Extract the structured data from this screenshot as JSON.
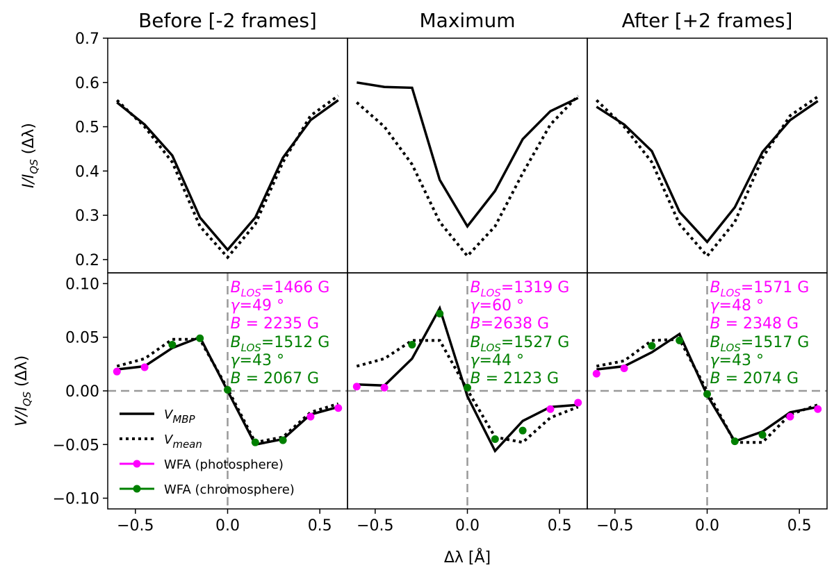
{
  "chart_data": {
    "type": "line",
    "panel_titles": [
      "Before [-2 frames]",
      "Maximum",
      "After [+2 frames]"
    ],
    "xlabel": "Δλ [Å]",
    "ylabel_top": "I/I_QS (Δλ)",
    "ylabel_bottom": "V/I_QS (Δλ)",
    "xlim": [
      -0.65,
      0.65
    ],
    "ylim_top": [
      0.17,
      0.7
    ],
    "ylim_bottom": [
      -0.11,
      0.11
    ],
    "xticks": [
      -0.5,
      0.0,
      0.5
    ],
    "xtick_labels": [
      "−0.5",
      "0.0",
      "0.5"
    ],
    "yticks_top": [
      0.2,
      0.3,
      0.4,
      0.5,
      0.6,
      0.7
    ],
    "ytick_labels_top": [
      "0.2",
      "0.3",
      "0.4",
      "0.5",
      "0.6",
      "0.7"
    ],
    "yticks_bottom": [
      -0.1,
      -0.05,
      0.0,
      0.05,
      0.1
    ],
    "ytick_labels_bottom": [
      "−0.10",
      "−0.05",
      "0.00",
      "0.05",
      "0.10"
    ],
    "x": [
      -0.6,
      -0.45,
      -0.3,
      -0.15,
      0.0,
      0.15,
      0.3,
      0.45,
      0.6
    ],
    "colors": {
      "photosphere": "#ff00ff",
      "chromosphere": "#008000",
      "reference": "#999999",
      "line": "#000000"
    },
    "legend": [
      {
        "key": "mbp",
        "label": "V_MBP"
      },
      {
        "key": "mean",
        "label": "V_mean"
      },
      {
        "key": "photo",
        "label": "WFA (photosphere)"
      },
      {
        "key": "chromo",
        "label": "WFA (chromosphere)"
      }
    ],
    "panels": [
      {
        "I_mbp": [
          0.555,
          0.505,
          0.435,
          0.295,
          0.222,
          0.295,
          0.43,
          0.515,
          0.56
        ],
        "I_mean": [
          0.56,
          0.5,
          0.42,
          0.275,
          0.205,
          0.28,
          0.42,
          0.525,
          0.57
        ],
        "V_mbp": [
          0.02,
          0.023,
          0.04,
          0.05,
          0.0,
          -0.05,
          -0.045,
          -0.022,
          -0.015
        ],
        "V_mean": [
          0.023,
          0.03,
          0.048,
          0.048,
          0.002,
          -0.048,
          -0.043,
          -0.02,
          -0.012
        ],
        "photo_x": [
          -0.6,
          -0.45,
          0.45,
          0.6
        ],
        "photo_y": [
          0.018,
          0.022,
          -0.024,
          -0.016
        ],
        "chromo_x": [
          -0.3,
          -0.15,
          0.0,
          0.15,
          0.3
        ],
        "chromo_y": [
          0.043,
          0.049,
          0.001,
          -0.048,
          -0.046
        ],
        "photo_text": [
          "B_LOS=1466 G",
          "γ=49 °",
          "B = 2235 G"
        ],
        "chromo_text": [
          "B_LOS=1512 G",
          "γ=43 °",
          "B = 2067 G"
        ]
      },
      {
        "I_mbp": [
          0.6,
          0.59,
          0.588,
          0.38,
          0.275,
          0.355,
          0.472,
          0.535,
          0.565
        ],
        "I_mean": [
          0.555,
          0.5,
          0.415,
          0.285,
          0.208,
          0.275,
          0.395,
          0.505,
          0.57
        ],
        "V_mbp": [
          0.006,
          0.005,
          0.03,
          0.077,
          -0.005,
          -0.056,
          -0.028,
          -0.015,
          -0.013
        ],
        "V_mean": [
          0.023,
          0.03,
          0.047,
          0.047,
          0.001,
          -0.043,
          -0.048,
          -0.025,
          -0.015
        ],
        "photo_x": [
          -0.6,
          -0.45,
          0.45,
          0.6
        ],
        "photo_y": [
          0.004,
          0.003,
          -0.017,
          -0.011
        ],
        "chromo_x": [
          -0.3,
          -0.15,
          0.0,
          0.15,
          0.3
        ],
        "chromo_y": [
          0.043,
          0.072,
          0.003,
          -0.045,
          -0.037
        ],
        "photo_text": [
          "B_LOS=1319 G",
          "γ=60 °",
          "B=2638 G"
        ],
        "chromo_text": [
          "B_LOS=1527 G",
          "γ=44 °",
          "B = 2123 G"
        ]
      },
      {
        "I_mbp": [
          0.545,
          0.505,
          0.445,
          0.308,
          0.24,
          0.318,
          0.443,
          0.515,
          0.558
        ],
        "I_mean": [
          0.56,
          0.5,
          0.42,
          0.28,
          0.208,
          0.285,
          0.43,
          0.525,
          0.568
        ],
        "V_mbp": [
          0.02,
          0.023,
          0.036,
          0.053,
          -0.004,
          -0.047,
          -0.038,
          -0.02,
          -0.015
        ],
        "V_mean": [
          0.023,
          0.028,
          0.047,
          0.048,
          0.0,
          -0.048,
          -0.048,
          -0.022,
          -0.013
        ],
        "photo_x": [
          -0.6,
          -0.45,
          0.45,
          0.6
        ],
        "photo_y": [
          0.016,
          0.021,
          -0.024,
          -0.017
        ],
        "chromo_x": [
          -0.3,
          -0.15,
          0.0,
          0.15,
          0.3
        ],
        "chromo_y": [
          0.042,
          0.047,
          -0.003,
          -0.047,
          -0.041
        ],
        "photo_text": [
          "B_LOS=1571 G",
          "γ=48 °",
          "B = 2348 G"
        ],
        "chromo_text": [
          "B_LOS=1517 G",
          "γ=43 °",
          "B = 2074 G"
        ]
      }
    ]
  }
}
